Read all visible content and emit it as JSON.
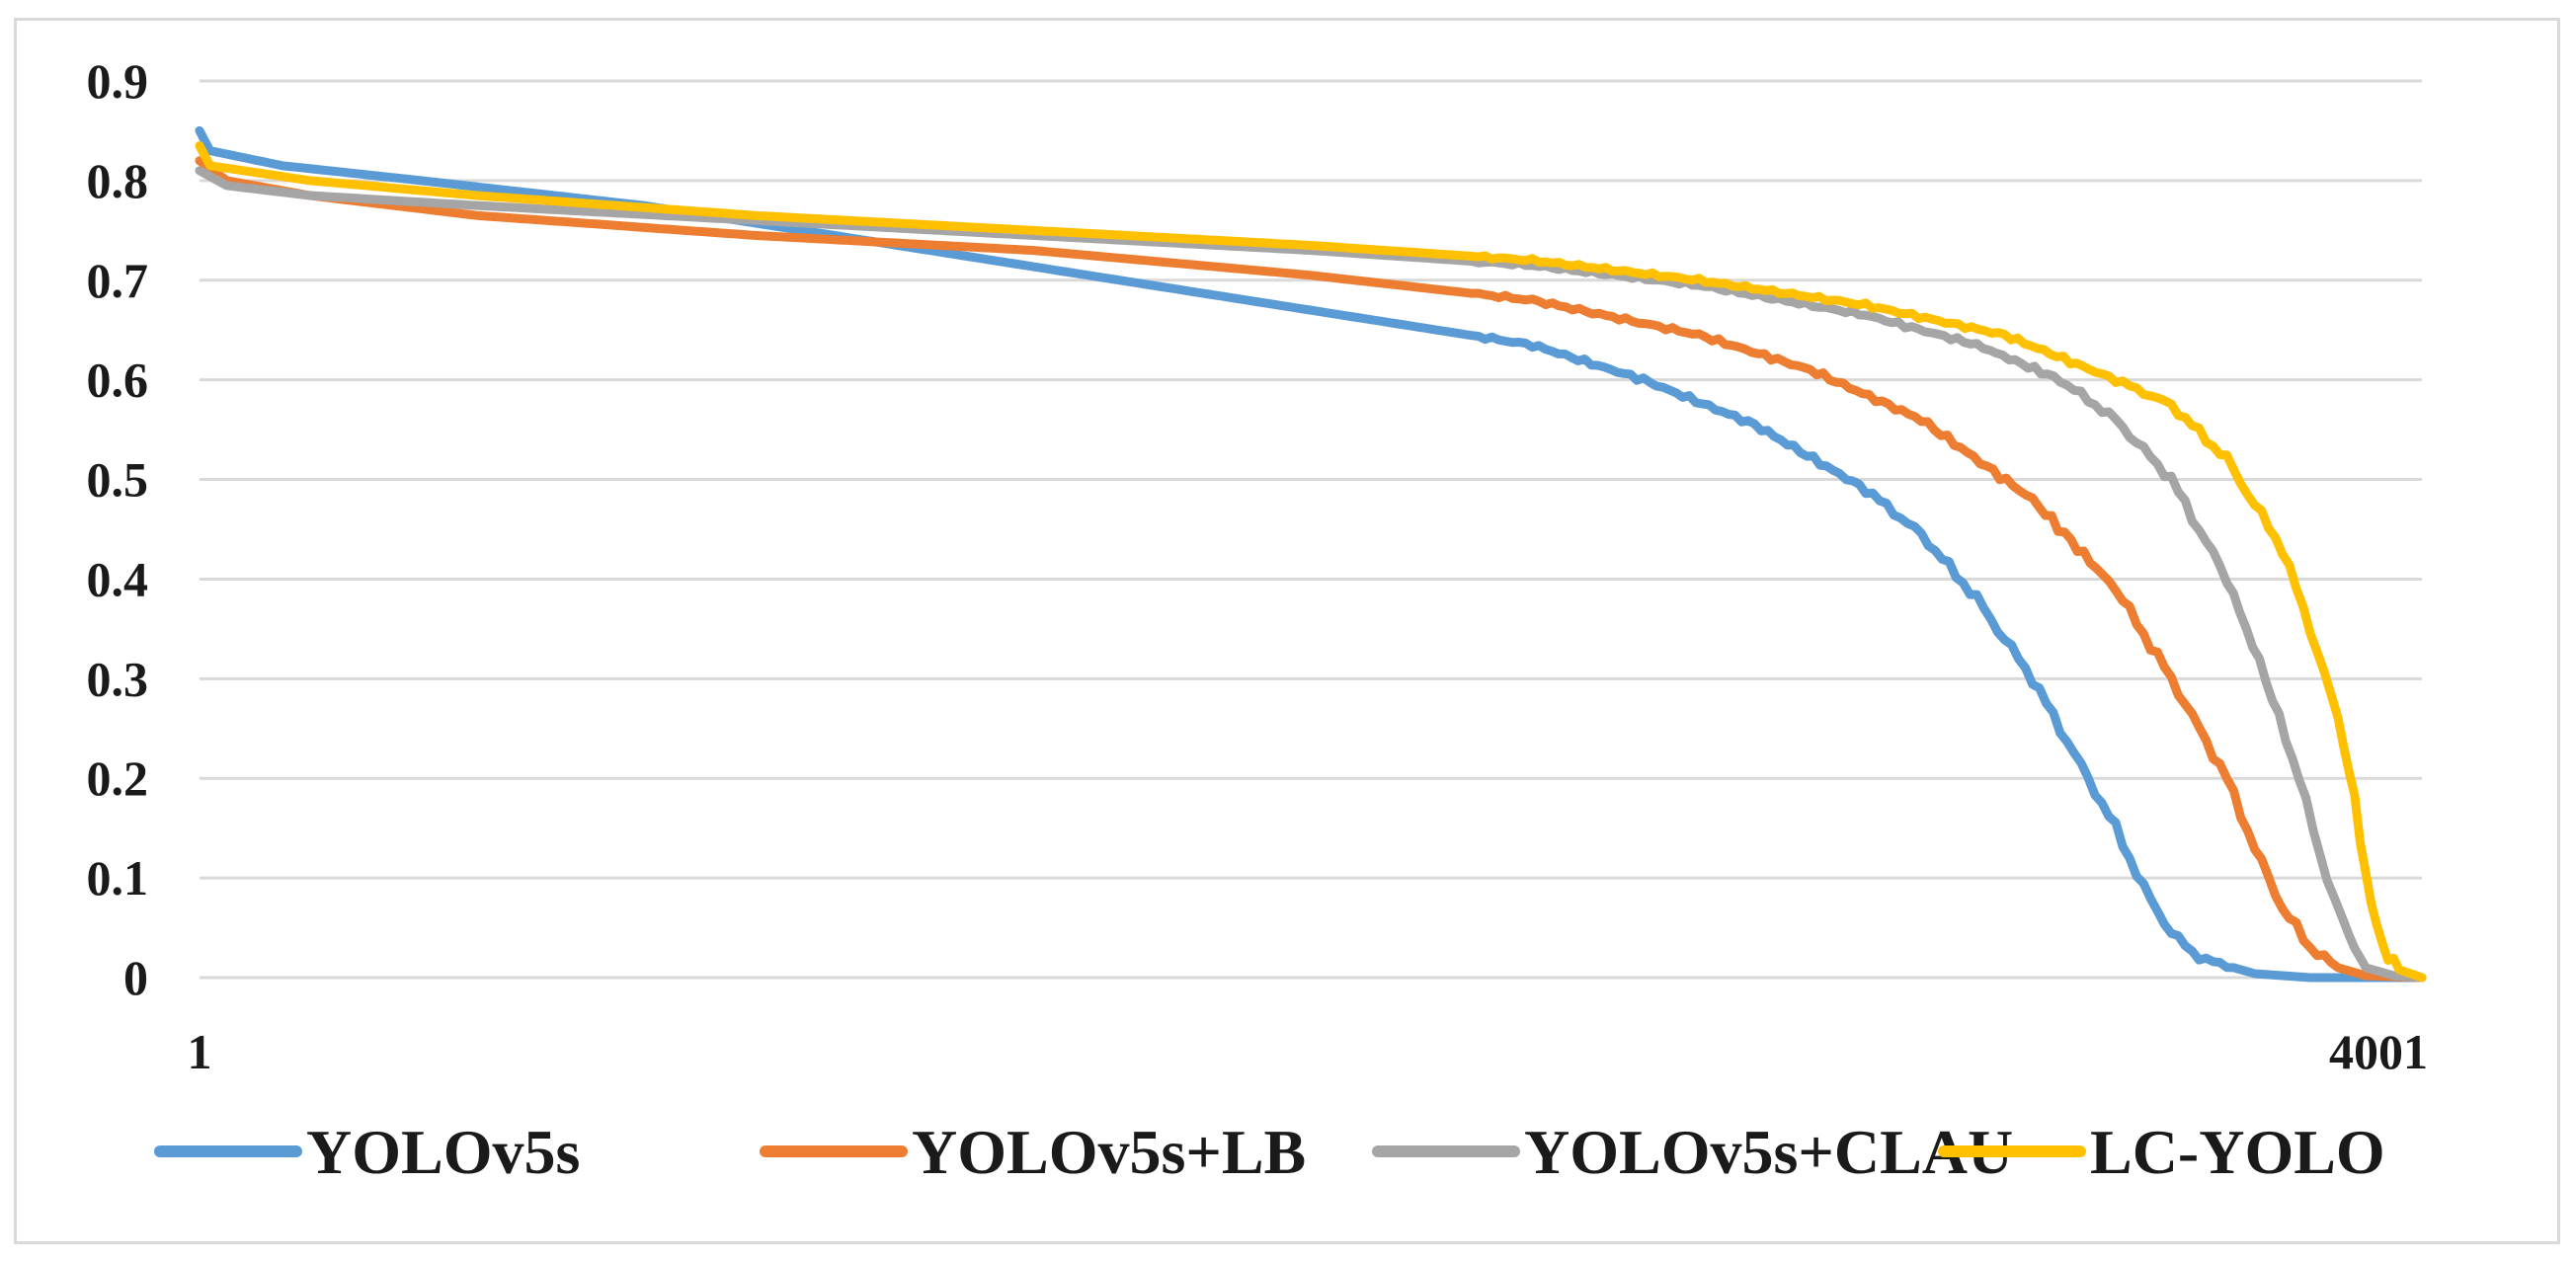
{
  "chart_data": {
    "type": "line",
    "title": "",
    "xlabel": "",
    "ylabel": "",
    "x_tick_labels": [
      "1",
      "4001"
    ],
    "x_range": [
      1,
      4001
    ],
    "y_ticks": [
      0,
      0.1,
      0.2,
      0.3,
      0.4,
      0.5,
      0.6,
      0.7,
      0.8,
      0.9
    ],
    "y_tick_labels": [
      "0",
      "0.1",
      "0.2",
      "0.3",
      "0.4",
      "0.5",
      "0.6",
      "0.7",
      "0.8",
      "0.9"
    ],
    "ylim": [
      0,
      0.9
    ],
    "grid": true,
    "legend_position": "bottom",
    "series": [
      {
        "name": "YOLOv5s",
        "color": "#5b9bd5",
        "points": [
          [
            1,
            0.85
          ],
          [
            20,
            0.83
          ],
          [
            150,
            0.815
          ],
          [
            400,
            0.8
          ],
          [
            800,
            0.775
          ],
          [
            1200,
            0.74
          ],
          [
            1600,
            0.705
          ],
          [
            2000,
            0.67
          ],
          [
            2400,
            0.635
          ],
          [
            2600,
            0.6
          ],
          [
            2800,
            0.555
          ],
          [
            3000,
            0.49
          ],
          [
            3100,
            0.445
          ],
          [
            3200,
            0.38
          ],
          [
            3300,
            0.3
          ],
          [
            3400,
            0.2
          ],
          [
            3450,
            0.15
          ],
          [
            3500,
            0.09
          ],
          [
            3550,
            0.045
          ],
          [
            3600,
            0.02
          ],
          [
            3700,
            0.004
          ],
          [
            3800,
            0.0
          ],
          [
            4001,
            0.0
          ]
        ]
      },
      {
        "name": "YOLOv5s+LB",
        "color": "#ed7d31",
        "points": [
          [
            1,
            0.82
          ],
          [
            50,
            0.8
          ],
          [
            200,
            0.785
          ],
          [
            500,
            0.765
          ],
          [
            1000,
            0.745
          ],
          [
            1500,
            0.73
          ],
          [
            2000,
            0.705
          ],
          [
            2400,
            0.68
          ],
          [
            2700,
            0.645
          ],
          [
            2900,
            0.61
          ],
          [
            3100,
            0.56
          ],
          [
            3300,
            0.48
          ],
          [
            3450,
            0.39
          ],
          [
            3550,
            0.3
          ],
          [
            3650,
            0.2
          ],
          [
            3700,
            0.13
          ],
          [
            3750,
            0.07
          ],
          [
            3800,
            0.03
          ],
          [
            3850,
            0.01
          ],
          [
            3900,
            0.002
          ],
          [
            4001,
            0.0
          ]
        ]
      },
      {
        "name": "YOLOv5s+CLAU",
        "color": "#a5a5a5",
        "points": [
          [
            1,
            0.81
          ],
          [
            50,
            0.795
          ],
          [
            200,
            0.785
          ],
          [
            500,
            0.775
          ],
          [
            1000,
            0.76
          ],
          [
            1500,
            0.745
          ],
          [
            2000,
            0.73
          ],
          [
            2400,
            0.715
          ],
          [
            2700,
            0.695
          ],
          [
            3000,
            0.665
          ],
          [
            3200,
            0.635
          ],
          [
            3350,
            0.6
          ],
          [
            3450,
            0.56
          ],
          [
            3550,
            0.5
          ],
          [
            3650,
            0.4
          ],
          [
            3720,
            0.3
          ],
          [
            3780,
            0.2
          ],
          [
            3830,
            0.1
          ],
          [
            3870,
            0.04
          ],
          [
            3900,
            0.01
          ],
          [
            3950,
            0.002
          ],
          [
            4001,
            0.0
          ]
        ]
      },
      {
        "name": "LC-YOLO",
        "color": "#ffc000",
        "points": [
          [
            1,
            0.835
          ],
          [
            20,
            0.815
          ],
          [
            200,
            0.8
          ],
          [
            500,
            0.785
          ],
          [
            1000,
            0.765
          ],
          [
            1500,
            0.75
          ],
          [
            2000,
            0.735
          ],
          [
            2400,
            0.72
          ],
          [
            2700,
            0.7
          ],
          [
            3000,
            0.675
          ],
          [
            3250,
            0.645
          ],
          [
            3450,
            0.6
          ],
          [
            3550,
            0.575
          ],
          [
            3650,
            0.52
          ],
          [
            3750,
            0.43
          ],
          [
            3800,
            0.35
          ],
          [
            3850,
            0.26
          ],
          [
            3880,
            0.18
          ],
          [
            3900,
            0.1
          ],
          [
            3930,
            0.03
          ],
          [
            3960,
            0.008
          ],
          [
            4001,
            0.0
          ]
        ]
      }
    ]
  }
}
